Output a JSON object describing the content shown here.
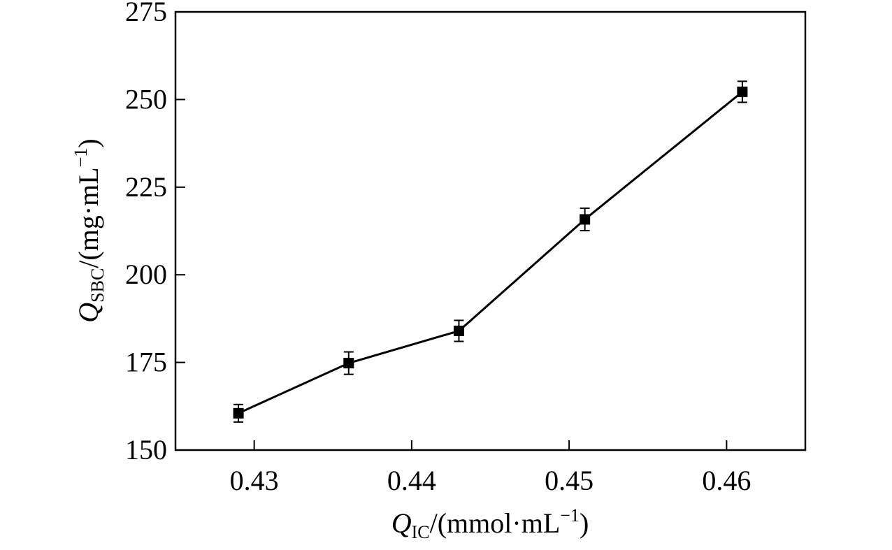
{
  "chart_data": {
    "type": "line",
    "x_title": {
      "symbol": "Q",
      "subscript": "IC",
      "unit_pre": "/(mmol·mL",
      "unit_sup": "−1",
      "unit_post": ")"
    },
    "y_title": {
      "symbol": "Q",
      "subscript": "SBC",
      "unit_pre": "/(mg·mL",
      "unit_sup": "−1",
      "unit_post": ")"
    },
    "xlim": [
      0.425,
      0.465
    ],
    "ylim": [
      150,
      275
    ],
    "x_ticks": [
      0.43,
      0.44,
      0.45,
      0.46
    ],
    "x_tick_labels": [
      "0.43",
      "0.44",
      "0.45",
      "0.46"
    ],
    "y_ticks": [
      150,
      175,
      200,
      225,
      250,
      275
    ],
    "y_tick_labels": [
      "150",
      "175",
      "200",
      "225",
      "250",
      "275"
    ],
    "grid": false,
    "series": [
      {
        "color": "#000000",
        "marker": "square",
        "x": [
          0.429,
          0.436,
          0.443,
          0.451,
          0.461
        ],
        "y": [
          160.5,
          174.8,
          184.0,
          215.8,
          252.2
        ],
        "error": [
          2.5,
          3.2,
          3.0,
          3.2,
          3.0
        ]
      }
    ]
  }
}
